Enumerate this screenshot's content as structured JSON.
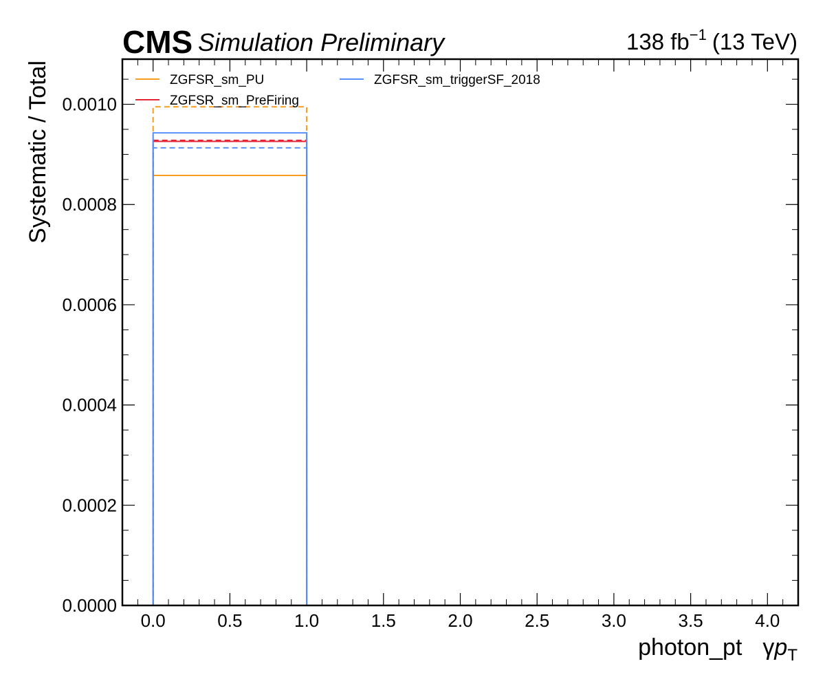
{
  "header": {
    "experiment": "CMS",
    "status": "Simulation Preliminary",
    "lumi_value": "138 fb",
    "lumi_exponent": "−1",
    "lumi_energy": "(13 TeV)"
  },
  "chart_data": {
    "type": "step",
    "xlabel": "photon_pt",
    "xlabel_symbol": "γ",
    "xlabel_var": "p",
    "xlabel_sub": "T",
    "ylabel": "Systematic / Total",
    "xlim": [
      -0.2,
      4.2
    ],
    "ylim": [
      0,
      0.00109
    ],
    "x_ticks": [
      0.0,
      0.5,
      1.0,
      1.5,
      2.0,
      2.5,
      3.0,
      3.5,
      4.0
    ],
    "x_tick_labels": [
      "0.0",
      "0.5",
      "1.0",
      "1.5",
      "2.0",
      "2.5",
      "3.0",
      "3.5",
      "4.0"
    ],
    "y_ticks": [
      0.0,
      0.0002,
      0.0004,
      0.0006,
      0.0008,
      0.001
    ],
    "y_tick_labels": [
      "0.0000",
      "0.0002",
      "0.0004",
      "0.0006",
      "0.0008",
      "0.0010"
    ],
    "bin_edges": [
      0,
      1
    ],
    "legend_position": "top-left",
    "series": [
      {
        "name": "ZGFSR_sm_PU",
        "color": "#f89c20",
        "up": 0.000995,
        "down": 0.000858
      },
      {
        "name": "ZGFSR_sm_PreFiring",
        "color": "#e42536",
        "up": 0.000928,
        "down": 0.000926
      },
      {
        "name": "ZGFSR_sm_triggerSF_2018",
        "color": "#5790fc",
        "up": 0.000913,
        "down": 0.000943
      }
    ]
  }
}
